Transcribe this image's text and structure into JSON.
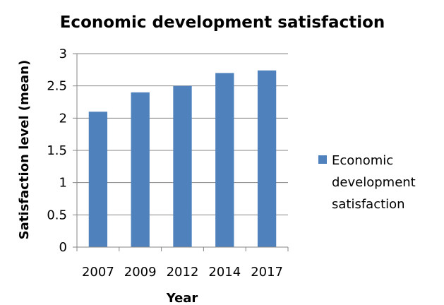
{
  "chart_data": {
    "type": "bar",
    "title": "Economic development satisfaction",
    "xlabel": "Year",
    "ylabel": "Satisfaction level (mean)",
    "categories": [
      "2007",
      "2009",
      "2012",
      "2014",
      "2017"
    ],
    "series": [
      {
        "name": "Economic development satisfaction",
        "values": [
          2.1,
          2.4,
          2.5,
          2.7,
          2.74
        ],
        "color": "#4F81BD"
      }
    ],
    "ylim": [
      0,
      3
    ],
    "yticks": [
      "0",
      "0.5",
      "1",
      "1.5",
      "2",
      "2.5",
      "3"
    ],
    "grid": true,
    "legend": {
      "position": "right",
      "lines": [
        "Economic",
        "development",
        "satisfaction"
      ]
    },
    "colors": {
      "gridline": "#868686",
      "axis": "#868686"
    }
  }
}
